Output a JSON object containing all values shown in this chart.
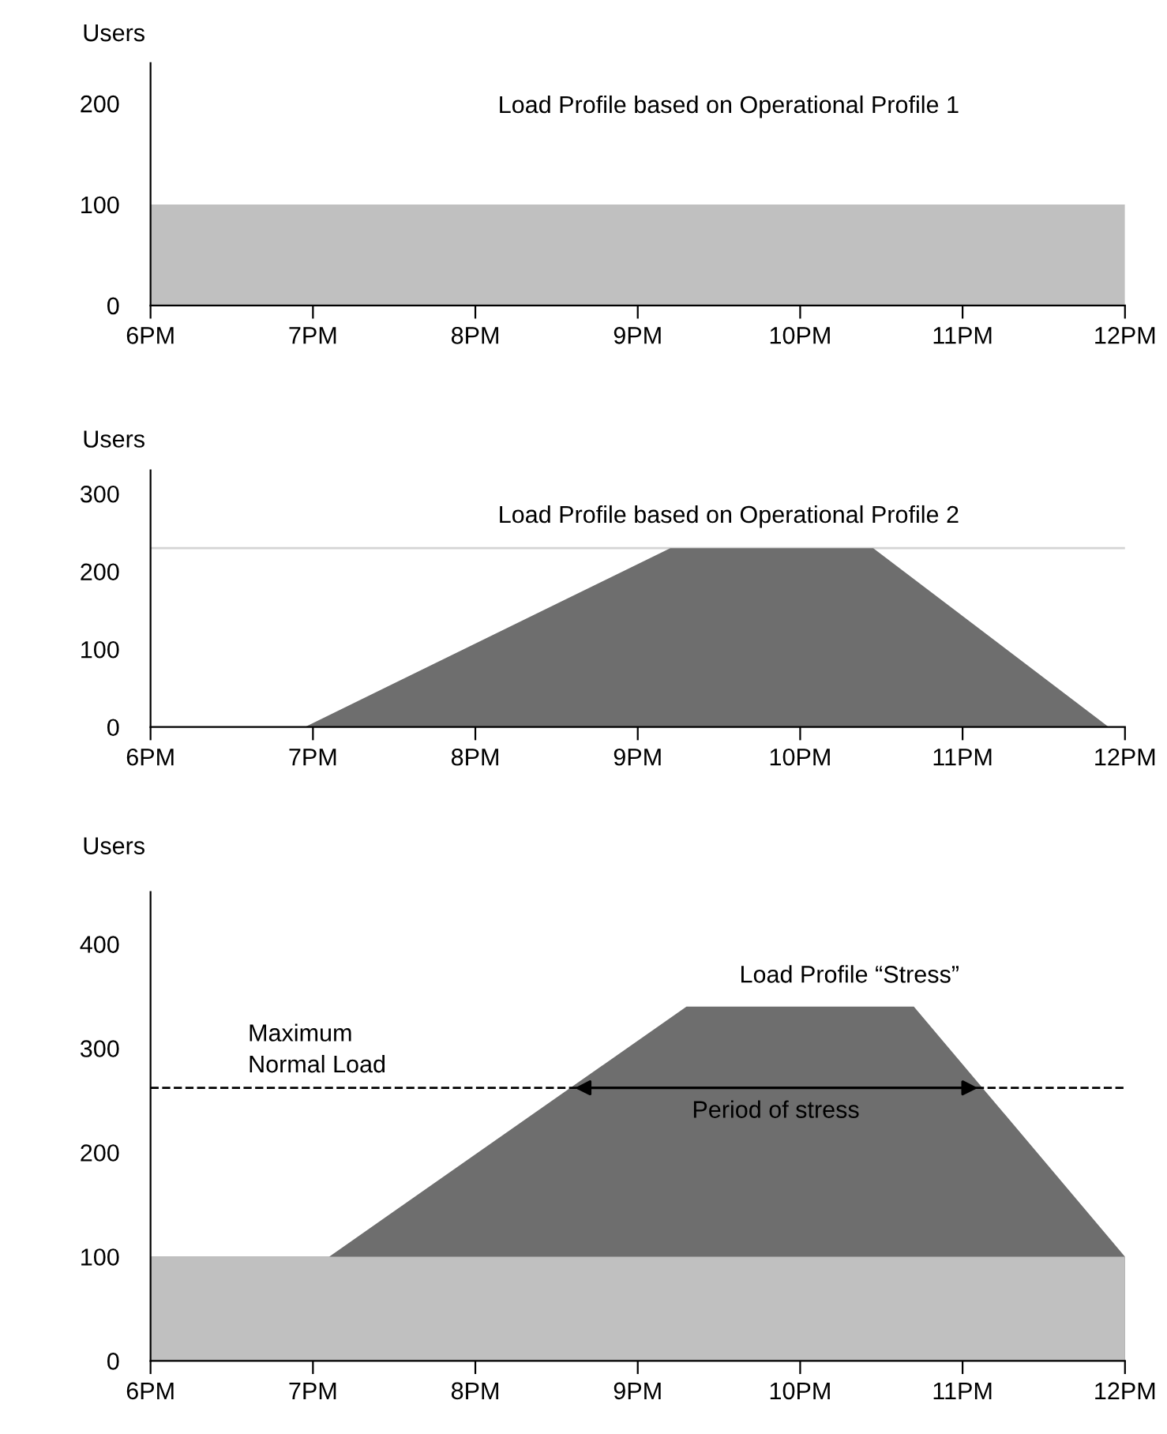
{
  "chart_data": [
    {
      "type": "area",
      "title": "Load Profile based on Operational Profile 1",
      "ylabel": "Users",
      "x": [
        6,
        12
      ],
      "xlim": [
        6,
        12
      ],
      "ylim": [
        0,
        240
      ],
      "yticks": [
        0,
        100,
        200
      ],
      "xticks": [
        {
          "value": 6,
          "label": "6PM"
        },
        {
          "value": 7,
          "label": "7PM"
        },
        {
          "value": 8,
          "label": "8PM"
        },
        {
          "value": 9,
          "label": "9PM"
        },
        {
          "value": 10,
          "label": "10PM"
        },
        {
          "value": 11,
          "label": "11PM"
        },
        {
          "value": 12,
          "label": "12PM"
        }
      ],
      "series": [
        {
          "color": "#c0c0c0",
          "values": [
            100,
            100
          ]
        }
      ]
    },
    {
      "type": "area",
      "title": "Load Profile based on Operational Profile 2",
      "ylabel": "Users",
      "x": [
        6,
        6.95,
        9.2,
        10.45,
        11.9,
        12
      ],
      "xlim": [
        6,
        12
      ],
      "ylim": [
        0,
        330
      ],
      "yticks": [
        0,
        100,
        200,
        300
      ],
      "xticks": [
        {
          "value": 6,
          "label": "6PM"
        },
        {
          "value": 7,
          "label": "7PM"
        },
        {
          "value": 8,
          "label": "8PM"
        },
        {
          "value": 9,
          "label": "9PM"
        },
        {
          "value": 10,
          "label": "10PM"
        },
        {
          "value": 11,
          "label": "11PM"
        },
        {
          "value": 12,
          "label": "12PM"
        }
      ],
      "series": [
        {
          "color": "#6e6e6e",
          "values": [
            0,
            0,
            230,
            230,
            0,
            0
          ]
        }
      ],
      "ref_lines": [
        {
          "axis": "y",
          "value": 230,
          "color": "#d4d4d4"
        }
      ]
    },
    {
      "type": "area",
      "title": "Load Profile “Stress”",
      "ylabel": "Users",
      "x": [
        6,
        7.1,
        9.3,
        10.7,
        12
      ],
      "xlim": [
        6,
        12
      ],
      "ylim": [
        0,
        450
      ],
      "yticks": [
        0,
        100,
        200,
        300,
        400
      ],
      "xticks": [
        {
          "value": 6,
          "label": "6PM"
        },
        {
          "value": 7,
          "label": "7PM"
        },
        {
          "value": 8,
          "label": "8PM"
        },
        {
          "value": 9,
          "label": "9PM"
        },
        {
          "value": 10,
          "label": "10PM"
        },
        {
          "value": 11,
          "label": "11PM"
        },
        {
          "value": 12,
          "label": "12PM"
        }
      ],
      "series": [
        {
          "color": "#6e6e6e",
          "values": [
            100,
            100,
            340,
            340,
            100
          ]
        },
        {
          "color": "#c0c0c0",
          "values": [
            100,
            100,
            100,
            100,
            100
          ]
        }
      ],
      "annotations": [
        {
          "text": "Period of stress",
          "x": 9.85,
          "y": 262
        }
      ],
      "ref_lines": [
        {
          "axis": "y",
          "value": 262,
          "label": "Maximum\nNormal Load",
          "line_style": "dashed",
          "color": "#000000"
        }
      ]
    }
  ]
}
